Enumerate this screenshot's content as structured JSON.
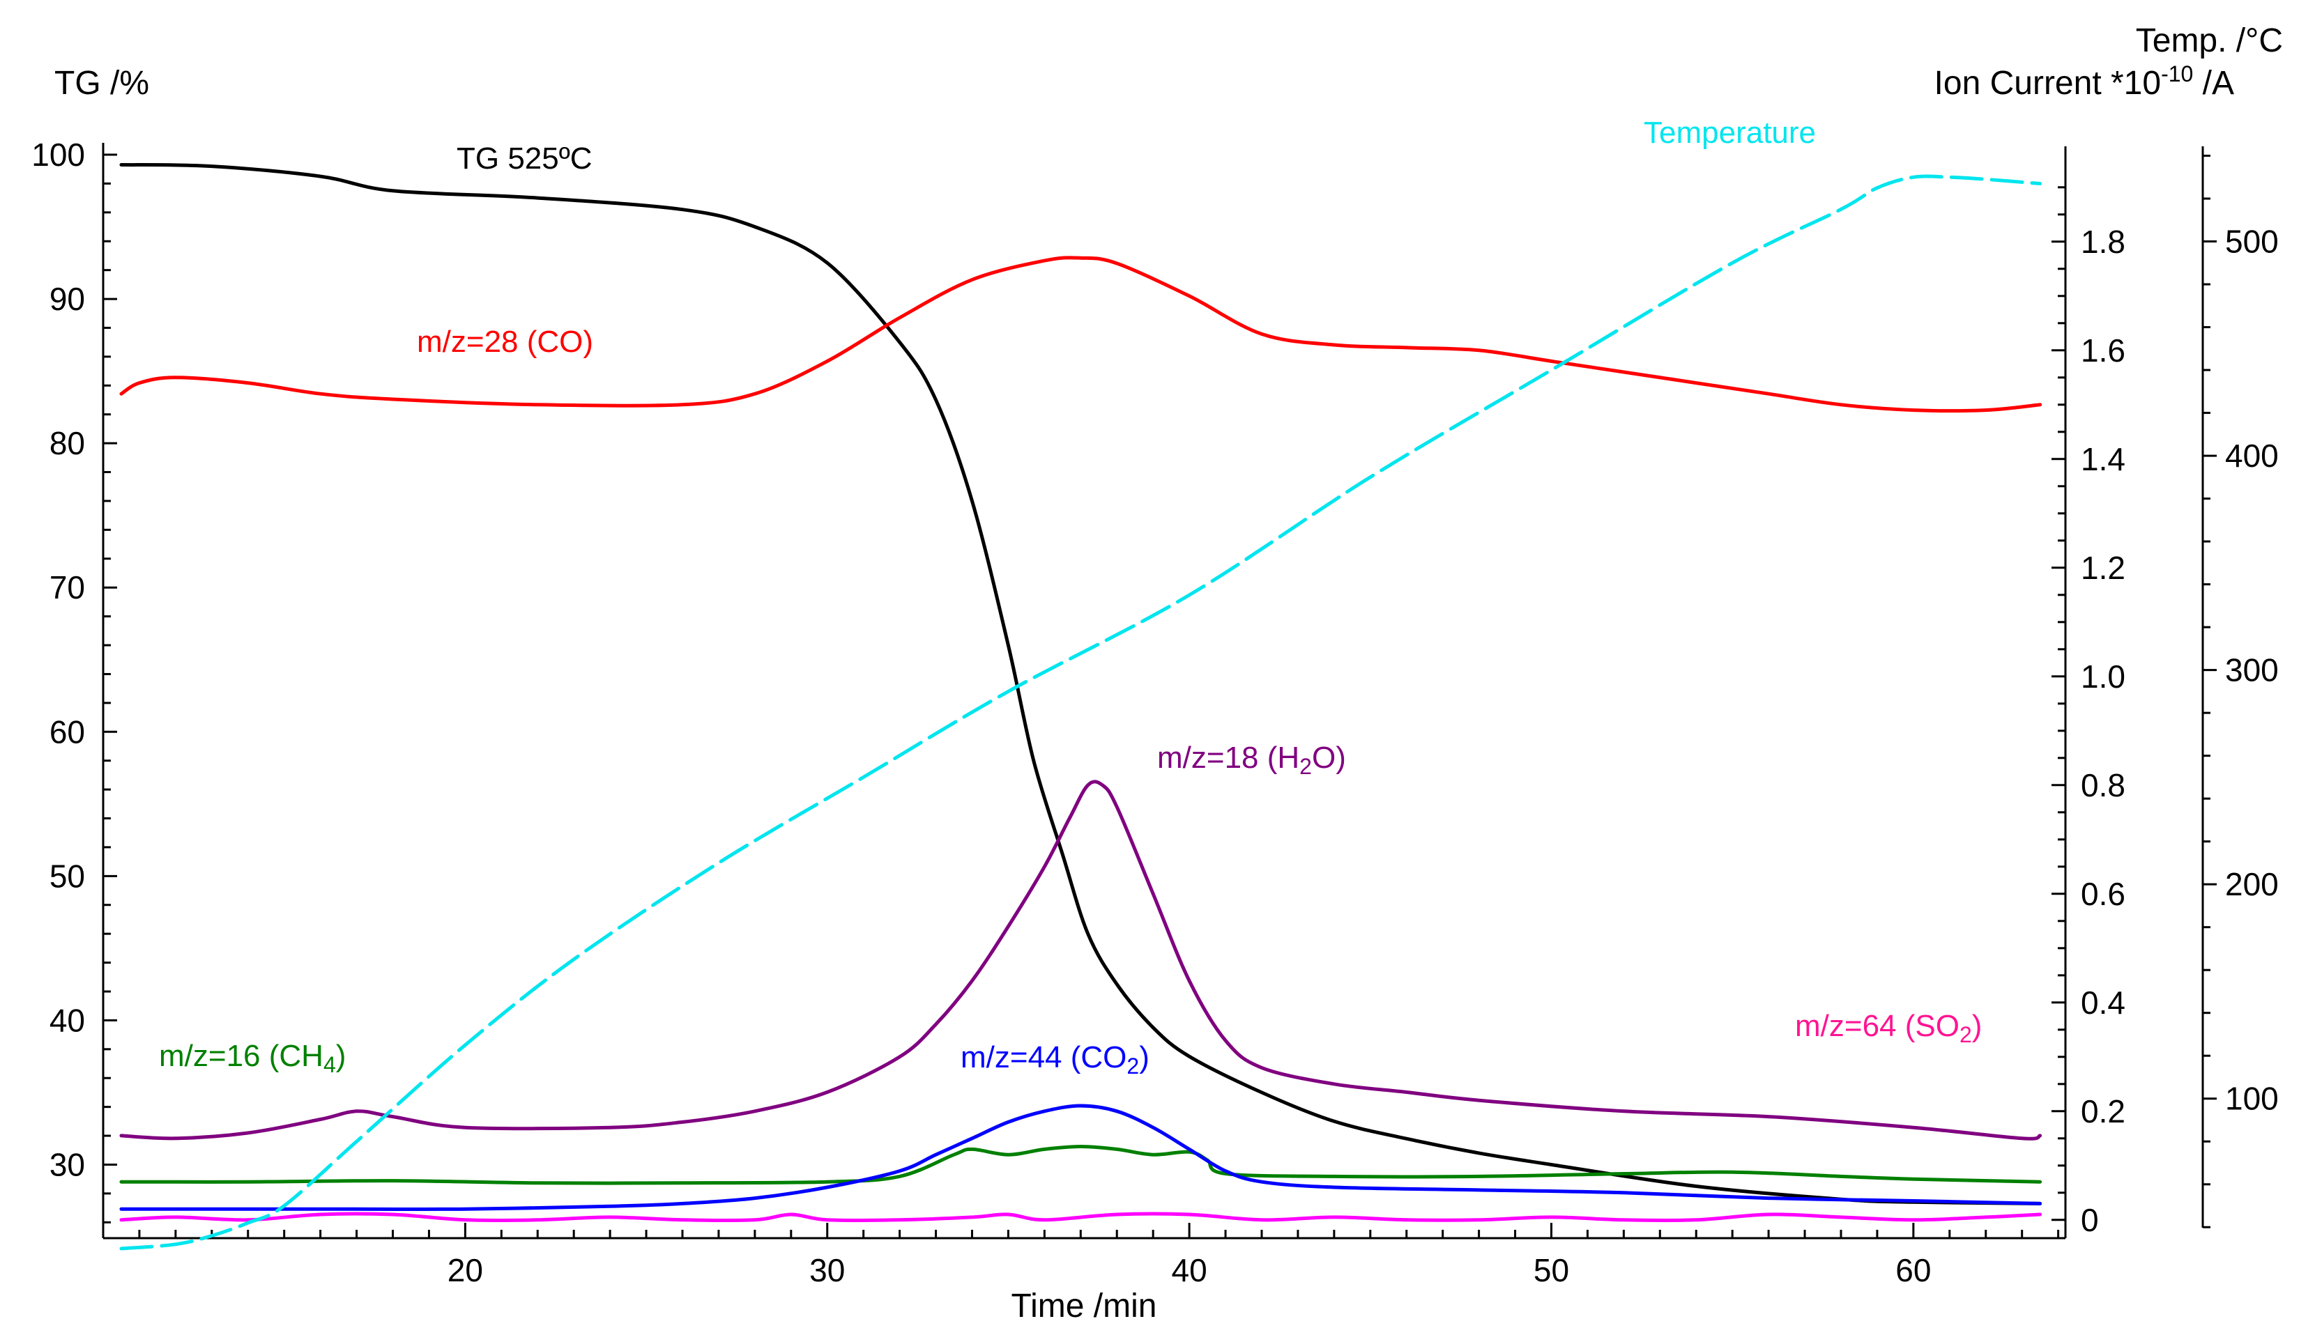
{
  "chart_data": {
    "type": "line",
    "x_axis": {
      "label": "Time /min",
      "range": [
        10,
        64
      ],
      "ticks": [
        20,
        30,
        40,
        50,
        60
      ],
      "tick_labels": [
        "20",
        "30",
        "40",
        "50",
        "60"
      ]
    },
    "y_left": {
      "label": "TG /%",
      "range": [
        25,
        100
      ],
      "ticks": [
        30,
        40,
        50,
        60,
        70,
        80,
        90,
        100
      ],
      "tick_labels": [
        "30",
        "40",
        "50",
        "60",
        "70",
        "80",
        "90",
        "100"
      ]
    },
    "y_right_ion": {
      "label": "Ion Current *10-10 /A",
      "label_parts": [
        "Ion Current *10",
        "-10",
        " /A"
      ],
      "range": [
        -0.04,
        1.96
      ],
      "ticks": [
        0,
        0.2,
        0.4,
        0.6,
        0.8,
        1.0,
        1.2,
        1.4,
        1.6,
        1.8
      ],
      "tick_labels": [
        "0",
        "0.2",
        "0.4",
        "0.6",
        "0.8",
        "1.0",
        "1.2",
        "1.4",
        "1.6",
        "1.8"
      ]
    },
    "y_right_temp": {
      "label": "Temp. /°C",
      "range": [
        30,
        560
      ],
      "ticks": [
        100,
        200,
        300,
        400,
        500
      ],
      "tick_labels": [
        "100",
        "200",
        "300",
        "400",
        "500"
      ]
    },
    "grid": false,
    "series": [
      {
        "name": "TG 525ºC",
        "axis": "left",
        "color": "#000000",
        "x": [
          10.5,
          13,
          16,
          18,
          22,
          26,
          28,
          30,
          32,
          33,
          34,
          35,
          35.7,
          36.5,
          37.2,
          38,
          39,
          40,
          42,
          44,
          46,
          48,
          50,
          54,
          58,
          60,
          63.5
        ],
        "y": [
          99.3,
          99.2,
          98.5,
          97.5,
          97,
          96.2,
          95,
          92.5,
          87,
          83,
          76,
          66,
          58,
          51.5,
          46,
          42.5,
          39.5,
          37.5,
          35,
          33,
          31.8,
          30.8,
          30,
          28.5,
          27.6,
          27.4,
          27.3
        ]
      },
      {
        "name": "m/z=28 (CO)",
        "axis": "ion",
        "color": "#ff0000",
        "x": [
          10.5,
          11,
          12,
          14,
          16,
          18,
          22,
          26,
          28,
          30,
          32,
          34,
          36,
          37,
          38,
          40,
          42,
          44,
          46,
          48,
          50,
          52,
          54,
          56,
          58,
          60,
          62,
          63.5
        ],
        "y": [
          1.52,
          1.54,
          1.55,
          1.54,
          1.52,
          1.51,
          1.5,
          1.5,
          1.52,
          1.58,
          1.66,
          1.73,
          1.765,
          1.77,
          1.76,
          1.7,
          1.63,
          1.61,
          1.605,
          1.6,
          1.58,
          1.56,
          1.54,
          1.52,
          1.5,
          1.49,
          1.49,
          1.5
        ]
      },
      {
        "name": "m/z=18 (H₂O)",
        "label_parts": [
          "m/z=18 (H",
          "2",
          "O)"
        ],
        "axis": "ion",
        "color": "#800080",
        "x": [
          10.5,
          12,
          14,
          16,
          17,
          18,
          20,
          24,
          26,
          28,
          30,
          32,
          33,
          34,
          35,
          36,
          36.7,
          37.2,
          37.6,
          38,
          39,
          40,
          41,
          42,
          44,
          46,
          48,
          52,
          56,
          60,
          63,
          63.5
        ],
        "y": [
          0.155,
          0.15,
          0.16,
          0.185,
          0.2,
          0.19,
          0.17,
          0.17,
          0.18,
          0.2,
          0.235,
          0.3,
          0.36,
          0.44,
          0.54,
          0.65,
          0.74,
          0.8,
          0.8,
          0.76,
          0.6,
          0.44,
          0.33,
          0.28,
          0.25,
          0.235,
          0.22,
          0.2,
          0.19,
          0.17,
          0.15,
          0.155
        ]
      },
      {
        "name": "m/z=16 (CH₄)",
        "label_parts": [
          "m/z=16 (CH",
          "4",
          ")"
        ],
        "axis": "ion",
        "color": "#008000",
        "x": [
          10.5,
          14,
          18,
          22,
          26,
          30,
          32,
          33.5,
          34,
          35,
          36,
          37,
          38,
          39,
          40,
          40.5,
          41,
          44,
          48,
          52,
          55,
          58,
          60,
          63.5
        ],
        "y": [
          0.07,
          0.07,
          0.072,
          0.068,
          0.068,
          0.07,
          0.08,
          0.12,
          0.13,
          0.12,
          0.13,
          0.135,
          0.13,
          0.12,
          0.125,
          0.11,
          0.085,
          0.08,
          0.08,
          0.085,
          0.088,
          0.08,
          0.075,
          0.07
        ]
      },
      {
        "name": "m/z=44 (CO₂)",
        "label_parts": [
          "m/z=44 (CO",
          "2",
          ")"
        ],
        "axis": "ion",
        "color": "#0000ff",
        "x": [
          10.5,
          16,
          20,
          24,
          26,
          28,
          30,
          32,
          33,
          34,
          35,
          36,
          37,
          38,
          39,
          40,
          41,
          42,
          44,
          48,
          52,
          56,
          60,
          63.5
        ],
        "y": [
          0.02,
          0.02,
          0.02,
          0.025,
          0.03,
          0.04,
          0.06,
          0.09,
          0.12,
          0.15,
          0.18,
          0.2,
          0.21,
          0.2,
          0.17,
          0.13,
          0.09,
          0.07,
          0.06,
          0.055,
          0.05,
          0.04,
          0.035,
          0.03
        ]
      },
      {
        "name": "m/z=64 (SO₂)",
        "label_parts": [
          "m/z=64 (SO",
          "2",
          ")"
        ],
        "axis": "ion",
        "color": "#ff00ff",
        "x": [
          10.5,
          12,
          14,
          16,
          18,
          20,
          22,
          24,
          26,
          28,
          29,
          30,
          32,
          34,
          35,
          36,
          38,
          40,
          42,
          44,
          46,
          48,
          50,
          52,
          54,
          56,
          58,
          60,
          62,
          63.5
        ],
        "y": [
          0.0,
          0.005,
          0.0,
          0.01,
          0.01,
          0.0,
          0.0,
          0.005,
          0.0,
          0.0,
          0.01,
          0.0,
          0.0,
          0.005,
          0.01,
          0.0,
          0.01,
          0.01,
          0.0,
          0.005,
          0.0,
          0.0,
          0.005,
          0.0,
          0.0,
          0.01,
          0.005,
          0.0,
          0.005,
          0.01
        ]
      },
      {
        "name": "Temperature",
        "axis": "temp",
        "color": "#00e5ee",
        "dashed": true,
        "x": [
          10.5,
          12,
          13,
          14,
          15,
          17,
          20,
          23,
          27,
          31,
          35,
          40,
          45,
          50,
          55,
          58,
          59,
          60,
          61,
          62,
          63.5
        ],
        "y": [
          30,
          32,
          36,
          42,
          50,
          80,
          125,
          165,
          210,
          250,
          290,
          335,
          390,
          440,
          490,
          515,
          525,
          530,
          530,
          529,
          527
        ]
      }
    ],
    "annotations": {
      "tg": "TG 525ºC",
      "temperature": "Temperature",
      "co": "m/z=28 (CO)",
      "h2o": [
        "m/z=18 (H",
        "2",
        "O)"
      ],
      "ch4": [
        "m/z=16 (CH",
        "4",
        ")"
      ],
      "co2": [
        "m/z=44 (CO",
        "2",
        ")"
      ],
      "so2": [
        "m/z=64 (SO",
        "2",
        ")"
      ]
    }
  }
}
